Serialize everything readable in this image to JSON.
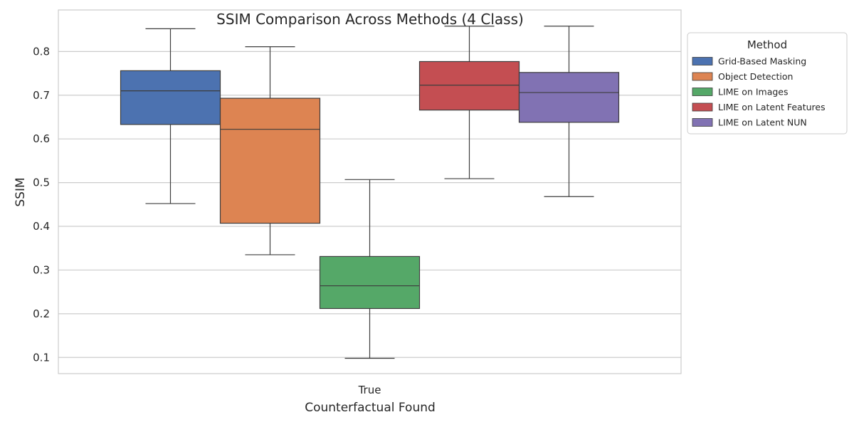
{
  "chart_data": {
    "type": "box",
    "title": "SSIM Comparison Across Methods (4 Class)",
    "xlabel": "Counterfactual Found",
    "ylabel": "SSIM",
    "categories": [
      "True"
    ],
    "ylim": [
      0.063,
      0.895
    ],
    "yticks": [
      0.1,
      0.2,
      0.3,
      0.4,
      0.5,
      0.6,
      0.7,
      0.8
    ],
    "grid": true,
    "legend": {
      "title": "Method",
      "placement": "outside-top-right"
    },
    "series": [
      {
        "name": "Grid-Based Masking",
        "color": "#4c72b0",
        "whisker_low": 0.452,
        "q1": 0.633,
        "median": 0.71,
        "q3": 0.756,
        "whisker_high": 0.852
      },
      {
        "name": "Object Detection",
        "color": "#dd8452",
        "whisker_low": 0.335,
        "q1": 0.407,
        "median": 0.622,
        "q3": 0.693,
        "whisker_high": 0.811
      },
      {
        "name": "LIME on Images",
        "color": "#55a868",
        "whisker_low": 0.098,
        "q1": 0.212,
        "median": 0.264,
        "q3": 0.331,
        "whisker_high": 0.507
      },
      {
        "name": "LIME on Latent Features",
        "color": "#c44e52",
        "whisker_low": 0.509,
        "q1": 0.666,
        "median": 0.723,
        "q3": 0.777,
        "whisker_high": 0.858
      },
      {
        "name": "LIME on Latent NUN",
        "color": "#8172b3",
        "whisker_low": 0.468,
        "q1": 0.638,
        "median": 0.706,
        "q3": 0.752,
        "whisker_high": 0.858
      }
    ]
  }
}
